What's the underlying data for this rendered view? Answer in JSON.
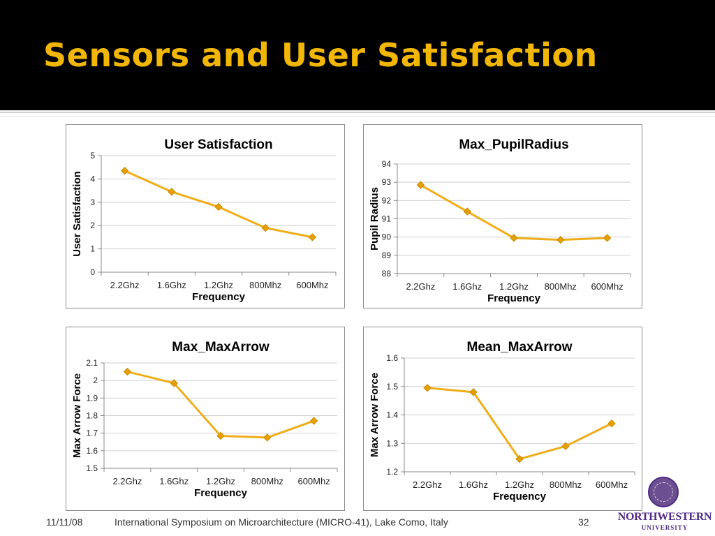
{
  "slide": {
    "title": "Sensors and User Satisfaction"
  },
  "colors": {
    "accent": "#f2b705",
    "line": "#f0ad1a",
    "marker": "#e6a000",
    "title_bar": "#000000"
  },
  "footer": {
    "date": "11/11/08",
    "conference": "International Symposium on Microarchitecture (MICRO-41), Lake Como, Italy",
    "page": "32"
  },
  "logo": {
    "name": "NORTHWESTERN",
    "sub": "UNIVERSITY"
  },
  "chart_data": [
    {
      "type": "line",
      "title": "User Satisfaction",
      "xlabel": "Frequency",
      "ylabel": "User Satisfaction",
      "categories": [
        "2.2Ghz",
        "1.6Ghz",
        "1.2Ghz",
        "800Mhz",
        "600Mhz"
      ],
      "values": [
        4.35,
        3.45,
        2.8,
        1.9,
        1.5
      ],
      "ylim": [
        0,
        5
      ],
      "yticks": [
        "0",
        "1",
        "2",
        "3",
        "4",
        "5"
      ],
      "grid": true,
      "legend": "none"
    },
    {
      "type": "line",
      "title": "Max_PupilRadius",
      "xlabel": "Frequency",
      "ylabel": "Pupil Radius",
      "categories": [
        "2.2Ghz",
        "1.6Ghz",
        "1.2Ghz",
        "800Mhz",
        "600Mhz"
      ],
      "values": [
        92.85,
        91.4,
        89.95,
        89.85,
        89.95
      ],
      "ylim": [
        88,
        94
      ],
      "yticks": [
        "88",
        "89",
        "90",
        "91",
        "92",
        "93",
        "94"
      ],
      "grid": true,
      "legend": "none"
    },
    {
      "type": "line",
      "title": "Max_MaxArrow",
      "xlabel": "Frequency",
      "ylabel": "Max Arrow Force",
      "categories": [
        "2.2Ghz",
        "1.6Ghz",
        "1.2Ghz",
        "800Mhz",
        "600Mhz"
      ],
      "values": [
        2.05,
        1.985,
        1.685,
        1.675,
        1.77
      ],
      "ylim": [
        1.5,
        2.1
      ],
      "yticks": [
        "1.5",
        "1.6",
        "1.7",
        "1.8",
        "1.9",
        "2",
        "2.1"
      ],
      "grid": true,
      "legend": "none"
    },
    {
      "type": "line",
      "title": "Mean_MaxArrow",
      "xlabel": "Frequency",
      "ylabel": "Max Arrow Force",
      "categories": [
        "2.2Ghz",
        "1.6Ghz",
        "1.2Ghz",
        "800Mhz",
        "600Mhz"
      ],
      "values": [
        1.495,
        1.48,
        1.245,
        1.29,
        1.37
      ],
      "ylim": [
        1.2,
        1.6
      ],
      "yticks": [
        "1.2",
        "1.3",
        "1.4",
        "1.5",
        "1.6"
      ],
      "grid": true,
      "legend": "none"
    }
  ]
}
